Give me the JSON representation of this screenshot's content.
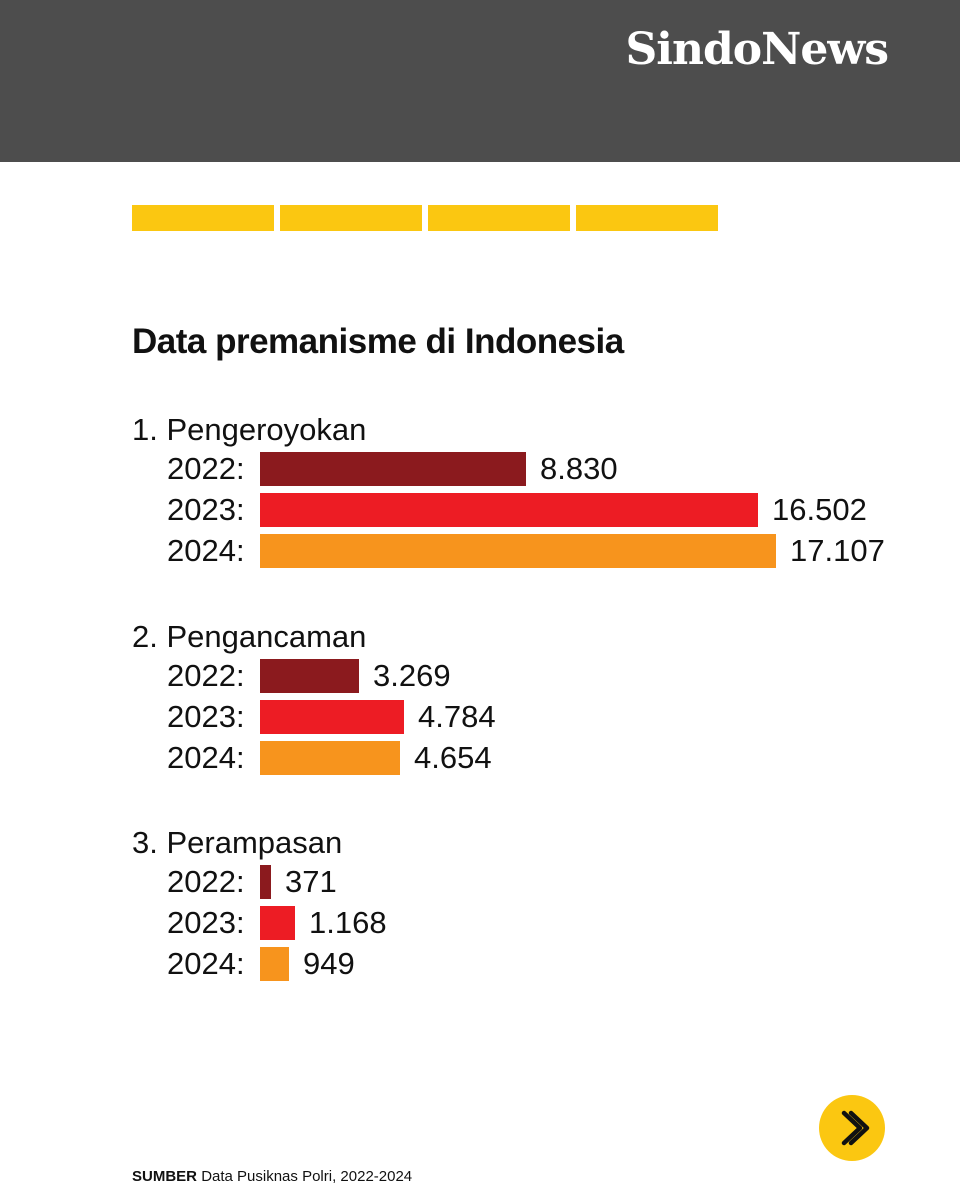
{
  "brand": {
    "logo_text": "SindoNews"
  },
  "progress": {
    "segments": 4
  },
  "colors": {
    "header_bg": "#4d4d4d",
    "accent_yellow": "#fbc711",
    "y2022": "#8b1a1e",
    "y2023": "#ed1c24",
    "y2024": "#f7941d"
  },
  "chart_data": {
    "type": "bar",
    "orientation": "horizontal",
    "title": "Data premanisme di Indonesia",
    "groups": [
      {
        "label": "1. Pengeroyokan",
        "rows": [
          {
            "year_label": "2022:",
            "value": 8830,
            "value_label": "8.830",
            "color": "#8b1a1e"
          },
          {
            "year_label": "2023:",
            "value": 16502,
            "value_label": "16.502",
            "color": "#ed1c24"
          },
          {
            "year_label": "2024:",
            "value": 17107,
            "value_label": "17.107",
            "color": "#f7941d"
          }
        ]
      },
      {
        "label": "2. Pengancaman",
        "rows": [
          {
            "year_label": "2022:",
            "value": 3269,
            "value_label": "3.269",
            "color": "#8b1a1e"
          },
          {
            "year_label": "2023:",
            "value": 4784,
            "value_label": "4.784",
            "color": "#ed1c24"
          },
          {
            "year_label": "2024:",
            "value": 4654,
            "value_label": "4.654",
            "color": "#f7941d"
          }
        ]
      },
      {
        "label": "3. Perampasan",
        "rows": [
          {
            "year_label": "2022:",
            "value": 371,
            "value_label": "371",
            "color": "#8b1a1e"
          },
          {
            "year_label": "2023:",
            "value": 1168,
            "value_label": "1.168",
            "color": "#ed1c24"
          },
          {
            "year_label": "2024:",
            "value": 949,
            "value_label": "949",
            "color": "#f7941d"
          }
        ]
      }
    ]
  },
  "next_button": {
    "icon": "chevron-right-icon"
  },
  "source": {
    "label": "SUMBER",
    "text": "Data Pusiknas Polri, 2022-2024"
  }
}
